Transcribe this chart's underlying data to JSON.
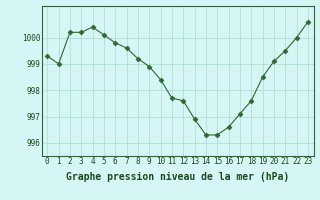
{
  "x": [
    0,
    1,
    2,
    3,
    4,
    5,
    6,
    7,
    8,
    9,
    10,
    11,
    12,
    13,
    14,
    15,
    16,
    17,
    18,
    19,
    20,
    21,
    22,
    23
  ],
  "y": [
    999.3,
    999.0,
    1000.2,
    1000.2,
    1000.4,
    1000.1,
    999.8,
    999.6,
    999.2,
    998.9,
    998.4,
    997.7,
    997.6,
    996.9,
    996.3,
    996.3,
    996.6,
    997.1,
    997.6,
    998.5,
    999.1,
    999.5,
    1000.0,
    1000.6
  ],
  "line_color": "#2d6a2d",
  "marker": "D",
  "marker_size": 2.5,
  "bg_color": "#d6f5f5",
  "grid_color": "#aaddcc",
  "xlabel": "Graphe pression niveau de la mer (hPa)",
  "xlabel_fontsize": 7,
  "xlabel_color": "#1a4a1a",
  "ytick_labels": [
    "996",
    "997",
    "998",
    "999",
    "1000"
  ],
  "yticks": [
    996,
    997,
    998,
    999,
    1000
  ],
  "ylim": [
    995.5,
    1001.2
  ],
  "xlim": [
    -0.5,
    23.5
  ],
  "xticks": [
    0,
    1,
    2,
    3,
    4,
    5,
    6,
    7,
    8,
    9,
    10,
    11,
    12,
    13,
    14,
    15,
    16,
    17,
    18,
    19,
    20,
    21,
    22,
    23
  ],
  "tick_fontsize": 5.5,
  "tick_color": "#1a4a1a",
  "spine_color": "#2d6a2d"
}
